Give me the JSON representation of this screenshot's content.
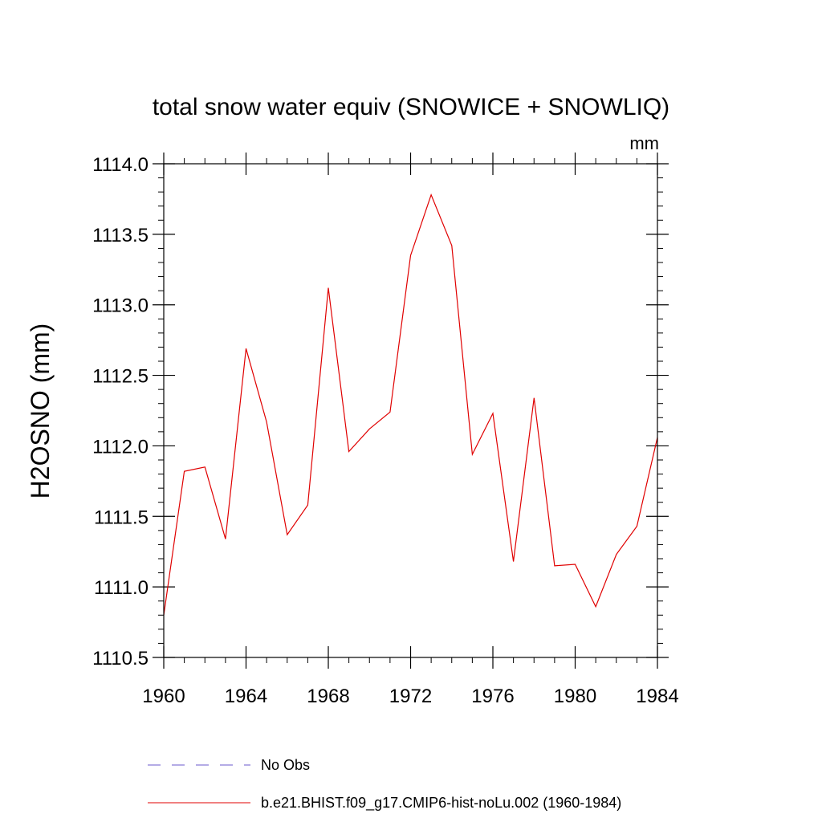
{
  "chart_data": {
    "type": "line",
    "title": "total snow water equiv (SNOWICE + SNOWLIQ)",
    "units_label": "mm",
    "ylabel": "H2OSNO  (mm)",
    "xlabel": "",
    "xlim": [
      1960,
      1984
    ],
    "ylim": [
      1110.5,
      1114.0
    ],
    "x_ticks": [
      1960,
      1964,
      1968,
      1972,
      1976,
      1980,
      1984
    ],
    "x_tick_labels": [
      "1960",
      "1964",
      "1968",
      "1972",
      "1976",
      "1980",
      "1984"
    ],
    "y_ticks": [
      1110.5,
      1111.0,
      1111.5,
      1112.0,
      1112.5,
      1113.0,
      1113.5,
      1114.0
    ],
    "y_tick_labels": [
      "1110.5",
      "1111.0",
      "1111.5",
      "1112.0",
      "1112.5",
      "1113.0",
      "1113.5",
      "1114.0"
    ],
    "grid": false,
    "legend_position": "bottom",
    "series": [
      {
        "name": "b.e21.BHIST.f09_g17.CMIP6-hist-noLu.002 (1960-1984)",
        "color": "#e00000",
        "style": "solid",
        "x": [
          1960,
          1961,
          1962,
          1963,
          1964,
          1965,
          1966,
          1967,
          1968,
          1969,
          1970,
          1971,
          1972,
          1973,
          1974,
          1975,
          1976,
          1977,
          1978,
          1979,
          1980,
          1981,
          1982,
          1983,
          1984
        ],
        "y": [
          1110.8,
          1111.82,
          1111.85,
          1111.34,
          1112.69,
          1112.17,
          1111.37,
          1111.58,
          1113.12,
          1111.96,
          1112.12,
          1112.24,
          1113.35,
          1113.78,
          1113.42,
          1111.94,
          1112.23,
          1111.18,
          1112.34,
          1111.15,
          1111.16,
          1110.86,
          1111.23,
          1111.43,
          1112.06
        ]
      }
    ],
    "legend": [
      {
        "label": "No Obs",
        "color": "#6a5acd",
        "style": "dashed"
      },
      {
        "label": "b.e21.BHIST.f09_g17.CMIP6-hist-noLu.002 (1960-1984)",
        "color": "#e00000",
        "style": "solid"
      }
    ]
  }
}
